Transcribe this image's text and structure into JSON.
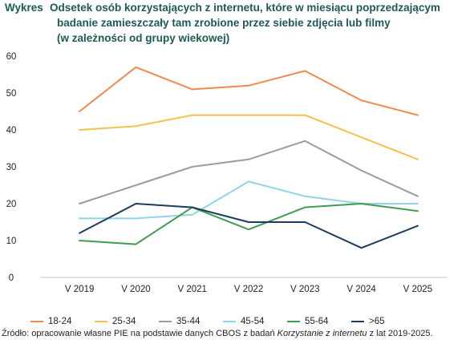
{
  "title": {
    "prefix": "Wykres",
    "lines": [
      "Odsetek osób korzystających z internetu, które w miesiącu poprzedzającym",
      "badanie zamieszczały tam zrobione przez siebie zdjęcia lub filmy",
      "(w zależności od grupy wiekowej)"
    ]
  },
  "source": {
    "part1": "Źródło: opracowanie własne PIE na podstawie danych CBOS z badań ",
    "italic": "Korzystanie z internetu",
    "part2": " z lat 2019-2025."
  },
  "chart_data": {
    "type": "line",
    "title": "Odsetek osób korzystających z internetu, które w miesiącu poprzedzającym badanie zamieszczały tam zrobione przez siebie zdjęcia lub filmy (w zależności od grupy wiekowej)",
    "xlabel": "",
    "ylabel": "",
    "categories": [
      "V 2019",
      "V 2020",
      "V 2021",
      "V 2022",
      "V 2023",
      "V 2024",
      "V 2025"
    ],
    "ylim": [
      0,
      60
    ],
    "yticks": [
      0,
      10,
      20,
      30,
      40,
      50,
      60
    ],
    "grid": false,
    "legend_position": "bottom",
    "series": [
      {
        "name": "18-24",
        "color": "#ef8a4e",
        "values": [
          45,
          57,
          51,
          52,
          56,
          48,
          44
        ]
      },
      {
        "name": "25-34",
        "color": "#f2c24f",
        "values": [
          40,
          41,
          44,
          44,
          44,
          38,
          32
        ]
      },
      {
        "name": "35-44",
        "color": "#9b9b9b",
        "values": [
          20,
          25,
          30,
          32,
          37,
          29,
          22
        ]
      },
      {
        "name": "45-54",
        "color": "#8fd3ea",
        "values": [
          16,
          16,
          17,
          26,
          22,
          20,
          20
        ]
      },
      {
        "name": "55-64",
        "color": "#3f9c4f",
        "values": [
          10,
          9,
          19,
          13,
          19,
          20,
          18
        ]
      },
      {
        "name": ">65",
        "color": "#1b3d5f",
        "values": [
          12,
          20,
          19,
          15,
          15,
          8,
          14
        ]
      }
    ]
  }
}
